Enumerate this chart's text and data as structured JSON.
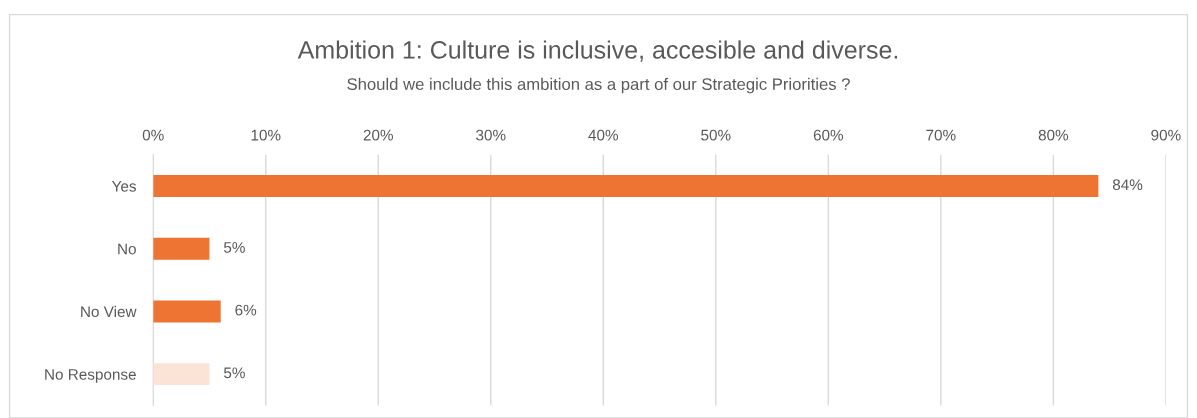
{
  "chart_data": {
    "type": "bar",
    "orientation": "horizontal",
    "title": "Ambition 1: Culture is inclusive, accesible and diverse.",
    "subtitle": "Should we include this ambition as a part of our Strategic Priorities ?",
    "categories": [
      "Yes",
      "No",
      "No View",
      "No Response"
    ],
    "values": [
      84,
      5,
      6,
      5
    ],
    "colors": [
      "#ed7433",
      "#ed7433",
      "#ed7433",
      "#fbe3d6"
    ],
    "value_labels": [
      "84%",
      "5%",
      "6%",
      "5%"
    ],
    "xlim": [
      0,
      90
    ],
    "xticks": [
      {
        "value": 0,
        "label": "0%"
      },
      {
        "value": 10,
        "label": "10%"
      },
      {
        "value": 20,
        "label": "20%"
      },
      {
        "value": 30,
        "label": "30%"
      },
      {
        "value": 40,
        "label": "40%"
      },
      {
        "value": 50,
        "label": "50%"
      },
      {
        "value": 60,
        "label": "60%"
      },
      {
        "value": 70,
        "label": "70%"
      },
      {
        "value": 80,
        "label": "80%"
      },
      {
        "value": 90,
        "label": "90%"
      }
    ],
    "grid": "x"
  }
}
